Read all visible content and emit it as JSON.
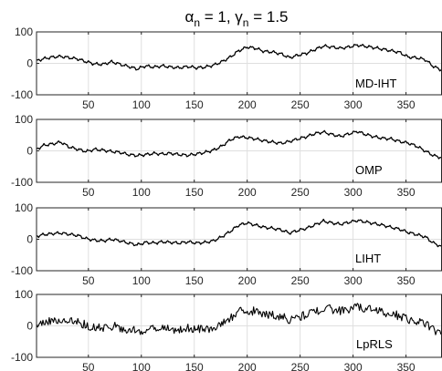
{
  "title": {
    "sym1": "α",
    "sub1": "n",
    "eq1": " = 1, ",
    "sym2": "γ",
    "sub2": "n",
    "eq2": " = 1.5"
  },
  "chart_data": [
    {
      "type": "line",
      "label": "MD-IHT",
      "xlim": [
        1,
        384
      ],
      "ylim": [
        -100,
        100
      ],
      "xticks": [
        50,
        100,
        150,
        200,
        250,
        300,
        350
      ],
      "yticks": [
        -100,
        0,
        100
      ],
      "grid": true,
      "x": [
        1,
        8,
        16,
        24,
        32,
        40,
        48,
        56,
        64,
        72,
        80,
        88,
        96,
        104,
        112,
        120,
        128,
        136,
        144,
        152,
        160,
        168,
        176,
        184,
        192,
        200,
        208,
        216,
        224,
        232,
        240,
        248,
        256,
        264,
        272,
        280,
        288,
        296,
        304,
        312,
        320,
        328,
        336,
        344,
        352,
        360,
        368,
        376,
        384
      ],
      "values": [
        8,
        15,
        20,
        22,
        18,
        14,
        5,
        -2,
        -3,
        5,
        -3,
        -10,
        -18,
        -8,
        -12,
        -8,
        -12,
        -14,
        -10,
        -14,
        -12,
        -6,
        5,
        20,
        40,
        52,
        48,
        38,
        36,
        30,
        18,
        26,
        32,
        44,
        55,
        52,
        48,
        52,
        58,
        54,
        50,
        45,
        40,
        35,
        20,
        18,
        12,
        -10,
        -22
      ],
      "noise": 0
    },
    {
      "type": "line",
      "label": "OMP",
      "xlim": [
        1,
        384
      ],
      "ylim": [
        -100,
        100
      ],
      "xticks": [
        50,
        100,
        150,
        200,
        250,
        300,
        350
      ],
      "yticks": [
        -100,
        0,
        100
      ],
      "grid": true,
      "x": [
        1,
        8,
        16,
        24,
        32,
        40,
        48,
        56,
        64,
        72,
        80,
        88,
        96,
        104,
        112,
        120,
        128,
        136,
        144,
        152,
        160,
        168,
        176,
        184,
        192,
        200,
        208,
        216,
        224,
        232,
        240,
        248,
        256,
        264,
        272,
        280,
        288,
        296,
        304,
        312,
        320,
        328,
        336,
        344,
        352,
        360,
        368,
        376,
        384
      ],
      "values": [
        5,
        18,
        22,
        28,
        12,
        5,
        -2,
        5,
        2,
        -2,
        -5,
        -12,
        -15,
        -12,
        -8,
        -10,
        -8,
        -12,
        -14,
        -10,
        -5,
        2,
        15,
        35,
        45,
        42,
        38,
        32,
        28,
        24,
        30,
        38,
        45,
        55,
        60,
        52,
        46,
        54,
        62,
        52,
        45,
        40,
        38,
        30,
        25,
        15,
        0,
        -15,
        -22
      ],
      "noise": 0
    },
    {
      "type": "line",
      "label": "LIHT",
      "xlim": [
        1,
        384
      ],
      "ylim": [
        -100,
        100
      ],
      "xticks": [
        50,
        100,
        150,
        200,
        250,
        300,
        350
      ],
      "yticks": [
        -100,
        0,
        100
      ],
      "grid": true,
      "x": [
        1,
        8,
        16,
        24,
        32,
        40,
        48,
        56,
        64,
        72,
        80,
        88,
        96,
        104,
        112,
        120,
        128,
        136,
        144,
        152,
        160,
        168,
        176,
        184,
        192,
        200,
        208,
        216,
        224,
        232,
        240,
        248,
        256,
        264,
        272,
        280,
        288,
        296,
        304,
        312,
        320,
        328,
        336,
        344,
        352,
        360,
        368,
        376,
        384
      ],
      "values": [
        10,
        15,
        18,
        20,
        16,
        12,
        2,
        -3,
        -5,
        0,
        -5,
        -12,
        -18,
        -10,
        -12,
        -8,
        -10,
        -12,
        -8,
        -12,
        -10,
        -5,
        8,
        25,
        45,
        52,
        45,
        38,
        35,
        30,
        20,
        28,
        35,
        46,
        58,
        52,
        48,
        54,
        60,
        55,
        50,
        45,
        38,
        32,
        22,
        15,
        8,
        -12,
        -24
      ],
      "noise": 0
    },
    {
      "type": "line",
      "label": "LpRLS",
      "xlim": [
        1,
        384
      ],
      "ylim": [
        -100,
        100
      ],
      "xticks": [
        50,
        100,
        150,
        200,
        250,
        300,
        350
      ],
      "yticks": [
        -100,
        0,
        100
      ],
      "grid": true,
      "x": [
        1,
        8,
        16,
        24,
        32,
        40,
        48,
        56,
        64,
        72,
        80,
        88,
        96,
        104,
        112,
        120,
        128,
        136,
        144,
        152,
        160,
        168,
        176,
        184,
        192,
        200,
        208,
        216,
        224,
        232,
        240,
        248,
        256,
        264,
        272,
        280,
        288,
        296,
        304,
        312,
        320,
        328,
        336,
        344,
        352,
        360,
        368,
        376,
        384
      ],
      "values": [
        8,
        15,
        18,
        20,
        16,
        12,
        2,
        -3,
        -5,
        0,
        -5,
        -12,
        -18,
        -10,
        -12,
        -8,
        -10,
        -12,
        -8,
        -12,
        -10,
        -5,
        8,
        25,
        45,
        52,
        45,
        38,
        35,
        30,
        20,
        28,
        35,
        46,
        58,
        52,
        48,
        54,
        60,
        55,
        50,
        45,
        38,
        32,
        22,
        15,
        8,
        -12,
        -24
      ],
      "noise": 14
    }
  ]
}
